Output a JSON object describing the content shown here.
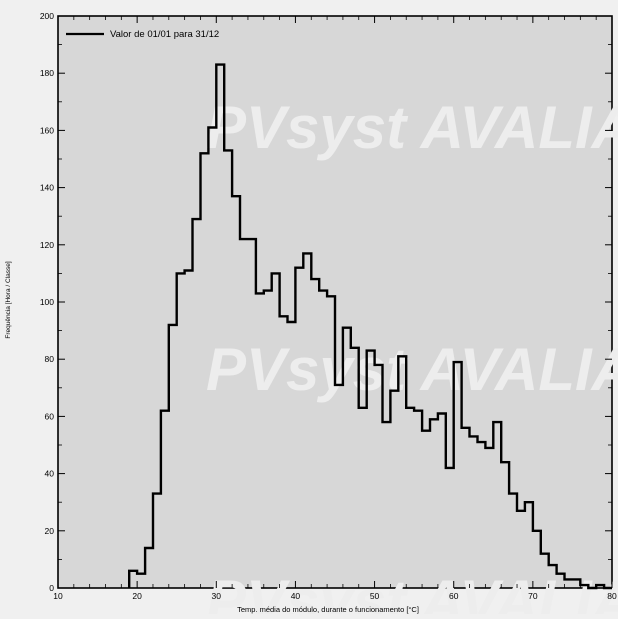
{
  "chart_data": {
    "type": "line",
    "xlabel": "Temp. média do módulo, durante o funcionamento [°C]",
    "ylabel": "Frequência [Hora / Classe]",
    "xlim": [
      10,
      80
    ],
    "ylim": [
      0,
      200
    ],
    "x_ticks": [
      10,
      20,
      30,
      40,
      50,
      60,
      70,
      80
    ],
    "y_ticks": [
      0,
      20,
      40,
      60,
      80,
      100,
      120,
      140,
      160,
      180,
      200
    ],
    "legend_position": "top-left",
    "watermark": "PVsyst AVALIAÇÃO",
    "series": [
      {
        "name": "Valor de 01/01 para 31/12",
        "step": "post",
        "x": [
          19,
          20,
          21,
          22,
          23,
          24,
          25,
          26,
          27,
          28,
          29,
          30,
          31,
          32,
          33,
          34,
          35,
          36,
          37,
          38,
          39,
          40,
          41,
          42,
          43,
          44,
          45,
          46,
          47,
          48,
          49,
          50,
          51,
          52,
          53,
          54,
          55,
          56,
          57,
          58,
          59,
          60,
          61,
          62,
          63,
          64,
          65,
          66,
          67,
          68,
          69,
          70,
          71,
          72,
          73,
          74,
          75,
          76,
          77,
          78,
          79
        ],
        "values": [
          6,
          5,
          14,
          33,
          62,
          92,
          110,
          111,
          129,
          152,
          161,
          183,
          153,
          137,
          122,
          122,
          103,
          104,
          110,
          95,
          93,
          112,
          117,
          108,
          104,
          102,
          71,
          91,
          84,
          63,
          83,
          78,
          58,
          69,
          81,
          63,
          62,
          55,
          59,
          61,
          42,
          79,
          56,
          53,
          51,
          49,
          58,
          44,
          33,
          27,
          30,
          20,
          12,
          8,
          5,
          3,
          3,
          1,
          0,
          1,
          0
        ]
      }
    ]
  }
}
